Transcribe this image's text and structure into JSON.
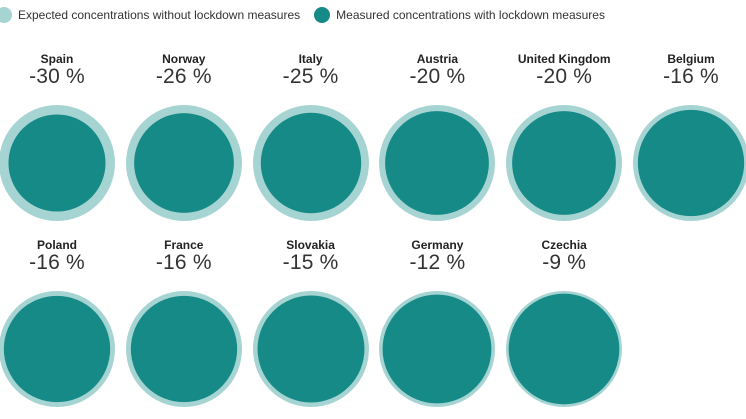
{
  "legend": {
    "expected_label": "Expected concentrations without lockdown measures",
    "measured_label": "Measured concentrations with lockdown measures"
  },
  "colors": {
    "expected": "#a6d4d3",
    "measured": "#168a87"
  },
  "chart_data": {
    "type": "proportional-circles",
    "title": "",
    "series": [
      {
        "name": "Expected concentrations without lockdown measures",
        "relative_value": 1.0
      },
      {
        "name": "Measured concentrations with lockdown measures"
      }
    ],
    "categories": [
      "Spain",
      "Norway",
      "Italy",
      "Austria",
      "United Kingdom",
      "Belgium",
      "Poland",
      "France",
      "Slovakia",
      "Germany",
      "Czechia"
    ],
    "values": [
      -30,
      -26,
      -25,
      -20,
      -20,
      -16,
      -16,
      -16,
      -15,
      -12,
      -9
    ],
    "labels": [
      "-30 %",
      "-26 %",
      "-25 %",
      "-20 %",
      "-20 %",
      "-16 %",
      "-16 %",
      "-16 %",
      "-15 %",
      "-12 %",
      "-9 %"
    ],
    "unit": "%",
    "grid": false,
    "legend_position": "top-left"
  }
}
